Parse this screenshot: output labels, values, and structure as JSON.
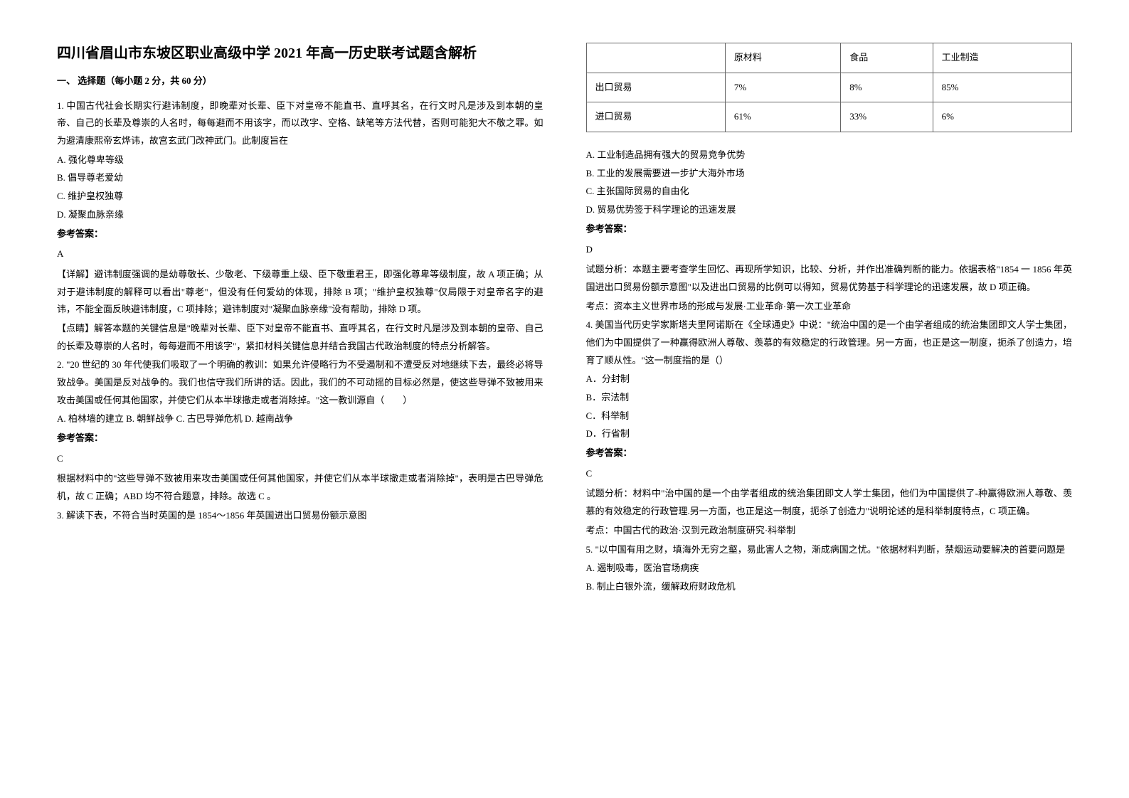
{
  "title": "四川省眉山市东坡区职业高级中学 2021 年高一历史联考试题含解析",
  "section1_title": "一、 选择题（每小题 2 分，共 60 分）",
  "q1": {
    "stem": "1. 中国古代社会长期实行避讳制度，即晚辈对长辈、臣下对皇帝不能直书、直呼其名，在行文时凡是涉及到本朝的皇帝、自己的长辈及尊崇的人名时，每每避而不用该字，而以改字、空格、缺笔等方法代替，否则可能犯大不敬之罪。如为避清康熙帝玄烨讳，故宫玄武门改神武门。此制度旨在",
    "a": "A. 强化尊卑等级",
    "b": "B. 倡导尊老爱幼",
    "c": "C. 维护皇权独尊",
    "d": "D. 凝聚血脉亲缘",
    "ans_label": "参考答案：",
    "ans": "A",
    "exp1": "【详解】避讳制度强调的是幼尊敬长、少敬老、下级尊重上级、臣下敬重君王，即强化尊卑等级制度，故 A 项正确；从对于避讳制度的解释可以看出\"尊老\"，但没有任何爱幼的体现，排除 B 项；\"维护皇权独尊\"仅局限于对皇帝名字的避讳，不能全面反映避讳制度，C 项排除；避讳制度对\"凝聚血脉亲缘\"没有帮助，排除 D 项。",
    "exp2": "【点睛】解答本题的关键信息是\"晚辈对长辈、臣下对皇帝不能直书、直呼其名，在行文时凡是涉及到本朝的皇帝、自己的长辈及尊崇的人名时，每每避而不用该字\"，紧扣材料关键信息并结合我国古代政治制度的特点分析解答。"
  },
  "q2": {
    "stem": "2. \"20 世纪的 30 年代使我们吸取了一个明确的教训：如果允许侵略行为不受遏制和不遭受反对地继续下去，最终必将导致战争。美国是反对战争的。我们也信守我们所讲的话。因此，我们的不可动摇的目标必然是，使这些导弹不致被用来攻击美国或任何其他国家，并使它们从本半球撤走或者消除掉。\"这一教训源自（　　）",
    "opts": "A. 柏林墙的建立 B. 朝鲜战争 C. 古巴导弹危机 D. 越南战争",
    "ans_label": "参考答案：",
    "ans": "C",
    "exp": "根据材料中的\"这些导弹不致被用来攻击美国或任何其他国家，并使它们从本半球撤走或者消除掉\"，表明是古巴导弹危机，故 C 正确；ABD 均不符合题意，排除。故选 C 。"
  },
  "q3": {
    "stem": "3. 解读下表，不符合当时英国的是 1854～1856 年英国进出口贸易份额示意图"
  },
  "table": {
    "h1": "",
    "h2": "原材料",
    "h3": "食品",
    "h4": "工业制造",
    "r1c1": "出口贸易",
    "r1c2": "7%",
    "r1c3": "8%",
    "r1c4": "85%",
    "r2c1": "进口贸易",
    "r2c2": "61%",
    "r2c3": "33%",
    "r2c4": "6%"
  },
  "q3b": {
    "a": "A. 工业制造品拥有强大的贸易竞争优势",
    "b": "B. 工业的发展需要进一步扩大海外市场",
    "c": "C. 主张国际贸易的自由化",
    "d": "D. 贸易优势签于科学理论的迅速发展",
    "ans_label": "参考答案：",
    "ans": "D",
    "exp1": "试题分析：本题主要考查学生回忆、再现所学知识，比较、分析，并作出准确判断的能力。依据表格\"1854 一 1856 年英国进出口贸易份额示意图\"以及进出口贸易的比例可以得知，贸易优势基于科学理论的迅速发展，故 D 项正确。",
    "exp2": "考点：资本主义世界市场的形成与发展·工业革命·第一次工业革命"
  },
  "q4": {
    "stem": "4. 美国当代历史学家斯塔夫里阿诺斯在《全球通史》中说：\"统治中国的是一个由学者组成的统治集团即文人学士集团，他们为中国提供了一种赢得欧洲人尊敬、羡慕的有效稳定的行政管理。另一方面，也正是这一制度，扼杀了创造力，培育了顺从性。\"这一制度指的是（）",
    "a": "A．分封制",
    "b": "B．宗法制",
    "c": "C．科举制",
    "d": "D．行省制",
    "ans_label": "参考答案：",
    "ans": "C",
    "exp1": "试题分析：材料中\"治中国的是一个由学者组成的统治集团即文人学士集团，他们为中国提供了-种赢得欧洲人尊敬、羡慕的有效稳定的行政管理.另一方面，也正是这一制度，扼杀了创造力\"说明论述的是科举制度特点，C 项正确。",
    "exp2": "考点：中国古代的政治·汉到元政治制度研究·科举制"
  },
  "q5": {
    "stem": "5. \"以中国有用之财，填海外无穷之壑，易此害人之物，渐成病国之忧。\"依据材料判断，禁烟运动要解决的首要问题是",
    "a": "A. 遏制吸毒，医治官场病疾",
    "b": "B. 制止白银外流，缓解政府财政危机"
  }
}
